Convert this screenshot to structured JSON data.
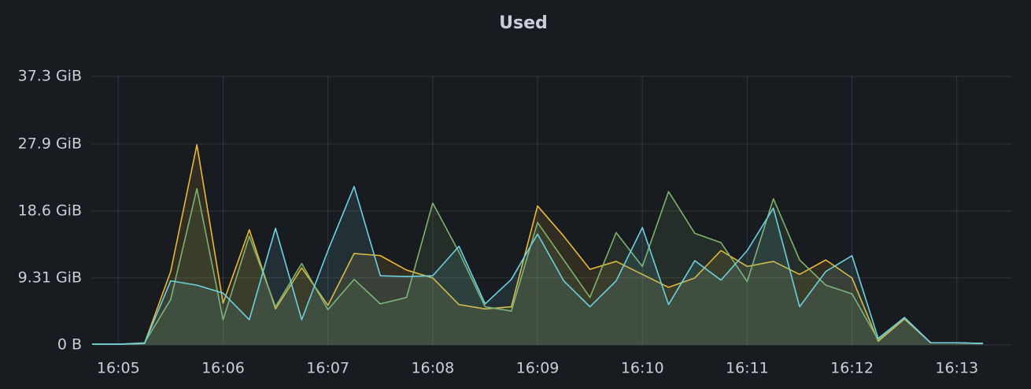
{
  "chart_data": {
    "type": "line",
    "title": "Used",
    "x": [
      4.75,
      5,
      5.25,
      5.5,
      5.75,
      6,
      6.25,
      6.5,
      6.75,
      7,
      7.25,
      7.5,
      7.75,
      8,
      8.25,
      8.5,
      8.75,
      9,
      9.25,
      9.5,
      9.75,
      10,
      10.25,
      10.5,
      10.75,
      11,
      11.25,
      11.5,
      11.75,
      12,
      12.25,
      12.5,
      12.75,
      13,
      13.25
    ],
    "xlim": [
      4.75,
      13.52
    ],
    "xticks": [
      {
        "value": 5,
        "label": "16:05"
      },
      {
        "value": 6,
        "label": "16:06"
      },
      {
        "value": 7,
        "label": "16:07"
      },
      {
        "value": 8,
        "label": "16:08"
      },
      {
        "value": 9,
        "label": "16:09"
      },
      {
        "value": 10,
        "label": "16:10"
      },
      {
        "value": 11,
        "label": "16:11"
      },
      {
        "value": 12,
        "label": "16:12"
      },
      {
        "value": 13,
        "label": "16:13"
      }
    ],
    "ylim": [
      0,
      37.3
    ],
    "yticks": [
      {
        "value": 0,
        "label": "0 B"
      },
      {
        "value": 9.31,
        "label": "9.31 GiB"
      },
      {
        "value": 18.6,
        "label": "18.6 GiB"
      },
      {
        "value": 27.9,
        "label": "27.9 GiB"
      },
      {
        "value": 37.3,
        "label": "37.3 GiB"
      }
    ],
    "grid": true,
    "series": [
      {
        "color": "#eab839",
        "values": [
          0.1,
          0.1,
          0.2,
          10.2,
          27.8,
          5.8,
          16.0,
          5.0,
          10.7,
          5.5,
          12.7,
          12.4,
          10.4,
          9.3,
          5.6,
          5.0,
          5.3,
          19.3,
          15.1,
          10.5,
          11.6,
          9.8,
          8.0,
          9.3,
          13.1,
          10.9,
          11.6,
          9.8,
          11.8,
          9.3,
          0.5,
          3.6,
          0.3,
          0.3,
          0.2
        ]
      },
      {
        "color": "#7eb26d",
        "values": [
          0.1,
          0.1,
          0.3,
          6.3,
          21.7,
          3.5,
          15.1,
          5.3,
          11.3,
          4.9,
          9.1,
          5.7,
          6.6,
          19.7,
          12.9,
          5.3,
          4.7,
          17.0,
          11.8,
          6.6,
          15.6,
          10.9,
          21.3,
          15.5,
          14.2,
          8.8,
          20.3,
          11.8,
          8.3,
          7.1,
          0.7,
          3.8,
          0.3,
          0.3,
          0.2
        ]
      },
      {
        "color": "#6ed0e0",
        "values": [
          0.1,
          0.1,
          0.2,
          8.9,
          8.3,
          7.2,
          3.5,
          16.2,
          3.5,
          13.1,
          22.0,
          9.6,
          9.5,
          9.6,
          13.7,
          5.7,
          9.1,
          15.4,
          8.9,
          5.3,
          8.9,
          16.3,
          5.6,
          11.7,
          9.0,
          13.1,
          19.0,
          5.3,
          10.2,
          12.4,
          0.9,
          3.8,
          0.3,
          0.3,
          0.2
        ]
      }
    ]
  }
}
